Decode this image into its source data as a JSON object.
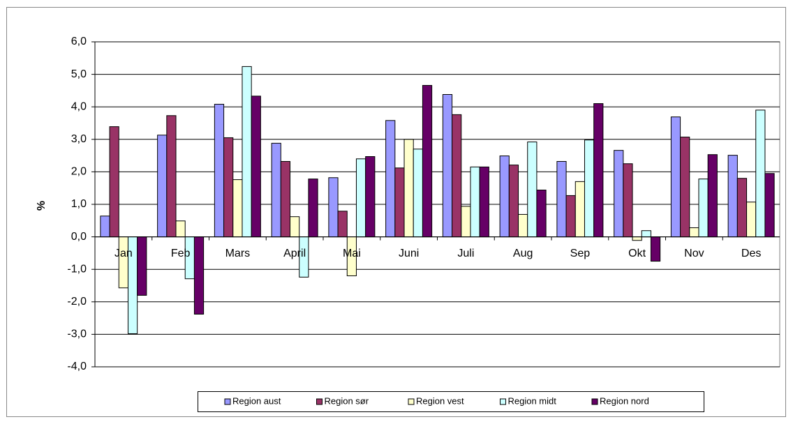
{
  "chart_data": {
    "type": "bar",
    "y_label": "%",
    "categories": [
      "Jan",
      "Feb",
      "Mars",
      "April",
      "Mai",
      "Juni",
      "Juli",
      "Aug",
      "Sep",
      "Okt",
      "Nov",
      "Des"
    ],
    "series": [
      {
        "name": "Region aust",
        "color": "#9999ff",
        "values": [
          0.64,
          3.13,
          4.08,
          2.88,
          1.82,
          3.58,
          4.38,
          2.49,
          2.32,
          2.66,
          3.69,
          2.51
        ]
      },
      {
        "name": "Region sør",
        "color": "#993366",
        "values": [
          3.39,
          3.73,
          3.05,
          2.32,
          0.79,
          2.12,
          3.76,
          2.21,
          1.27,
          2.25,
          3.07,
          1.8
        ]
      },
      {
        "name": "Region vest",
        "color": "#ffffcc",
        "values": [
          -1.57,
          0.49,
          1.76,
          0.62,
          -1.2,
          3.0,
          0.94,
          0.69,
          1.7,
          -0.11,
          0.28,
          1.07
        ]
      },
      {
        "name": "Region midt",
        "color": "#ccffff",
        "values": [
          -2.98,
          -1.29,
          5.24,
          -1.24,
          2.4,
          2.7,
          2.15,
          2.92,
          2.98,
          0.19,
          1.78,
          3.9
        ]
      },
      {
        "name": "Region nord",
        "color": "#660066",
        "values": [
          -1.8,
          -2.38,
          4.33,
          1.78,
          2.47,
          4.66,
          2.15,
          1.44,
          4.1,
          -0.75,
          2.53,
          1.95
        ]
      }
    ],
    "ylim": [
      -4,
      6
    ],
    "yticks": [
      {
        "value": -4,
        "label": "-4,0"
      },
      {
        "value": -3,
        "label": "-3,0"
      },
      {
        "value": -2,
        "label": "-2,0"
      },
      {
        "value": -1,
        "label": "-1,0"
      },
      {
        "value": 0,
        "label": "0,0"
      },
      {
        "value": 1,
        "label": "1,0"
      },
      {
        "value": 2,
        "label": "2,0"
      },
      {
        "value": 3,
        "label": "3,0"
      },
      {
        "value": 4,
        "label": "4,0"
      },
      {
        "value": 5,
        "label": "5,0"
      },
      {
        "value": 6,
        "label": "6,0"
      }
    ],
    "grid": true,
    "legend": "bottom"
  }
}
